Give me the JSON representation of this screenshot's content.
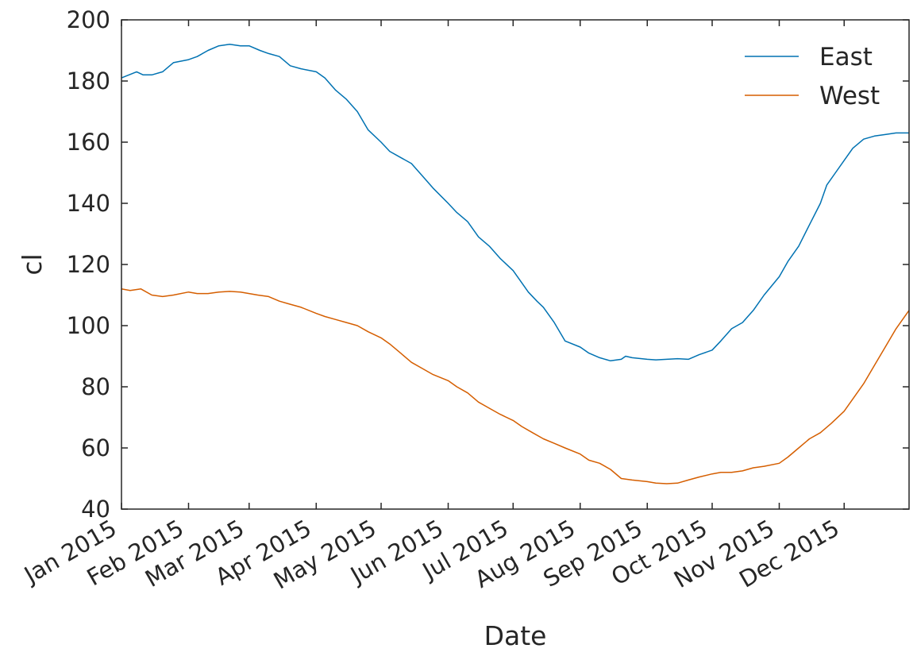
{
  "chart_data": {
    "type": "line",
    "xlabel": "Date",
    "ylabel": "cl",
    "xlim": [
      "2015-01-01",
      "2015-12-31"
    ],
    "ylim": [
      40,
      200
    ],
    "x_ticks": [
      "2015-01-01",
      "2015-02-01",
      "2015-03-01",
      "2015-04-01",
      "2015-05-01",
      "2015-06-01",
      "2015-07-01",
      "2015-08-01",
      "2015-09-01",
      "2015-10-01",
      "2015-11-01",
      "2015-12-01"
    ],
    "x_tick_labels": [
      "Jan 2015",
      "Feb 2015",
      "Mar 2015",
      "Apr 2015",
      "May 2015",
      "Jun 2015",
      "Jul 2015",
      "Aug 2015",
      "Sep 2015",
      "Oct 2015",
      "Nov 2015",
      "Dec 2015"
    ],
    "y_ticks": [
      40,
      60,
      80,
      100,
      120,
      140,
      160,
      180,
      200
    ],
    "y_tick_labels": [
      "40",
      "60",
      "80",
      "100",
      "120",
      "140",
      "160",
      "180",
      "200"
    ],
    "grid": false,
    "legend": "top-right",
    "series": [
      {
        "name": "East",
        "color": "#0072b2",
        "x": [
          "2015-01-01",
          "2015-01-08",
          "2015-01-11",
          "2015-01-15",
          "2015-01-20",
          "2015-01-25",
          "2015-02-01",
          "2015-02-05",
          "2015-02-10",
          "2015-02-15",
          "2015-02-20",
          "2015-02-25",
          "2015-03-01",
          "2015-03-06",
          "2015-03-10",
          "2015-03-15",
          "2015-03-20",
          "2015-03-25",
          "2015-04-01",
          "2015-04-05",
          "2015-04-10",
          "2015-04-15",
          "2015-04-20",
          "2015-04-25",
          "2015-05-01",
          "2015-05-05",
          "2015-05-10",
          "2015-05-15",
          "2015-05-20",
          "2015-05-25",
          "2015-06-01",
          "2015-06-05",
          "2015-06-10",
          "2015-06-15",
          "2015-06-20",
          "2015-06-25",
          "2015-07-01",
          "2015-07-05",
          "2015-07-08",
          "2015-07-12",
          "2015-07-15",
          "2015-07-20",
          "2015-07-25",
          "2015-08-01",
          "2015-08-05",
          "2015-08-10",
          "2015-08-15",
          "2015-08-20",
          "2015-08-22",
          "2015-08-25",
          "2015-09-01",
          "2015-09-05",
          "2015-09-10",
          "2015-09-15",
          "2015-09-20",
          "2015-09-25",
          "2015-10-01",
          "2015-10-05",
          "2015-10-10",
          "2015-10-15",
          "2015-10-20",
          "2015-10-25",
          "2015-11-01",
          "2015-11-05",
          "2015-11-10",
          "2015-11-15",
          "2015-11-20",
          "2015-11-23",
          "2015-11-27",
          "2015-12-01",
          "2015-12-05",
          "2015-12-10",
          "2015-12-15",
          "2015-12-20",
          "2015-12-25",
          "2015-12-31"
        ],
        "y": [
          181,
          183,
          182,
          182,
          183,
          186,
          187,
          188,
          190,
          191.5,
          192,
          191.5,
          191.5,
          190,
          189,
          188,
          185,
          184,
          183,
          181,
          177,
          174,
          170,
          164,
          160,
          157,
          155,
          153,
          149,
          145,
          140,
          137,
          134,
          129,
          126,
          122,
          118,
          114,
          111,
          108,
          106,
          101,
          95,
          93,
          91,
          89.5,
          88.5,
          89,
          90,
          89.5,
          89,
          88.8,
          89,
          89.2,
          89,
          90.5,
          92,
          95,
          99,
          101,
          105,
          110,
          116,
          121,
          126,
          133,
          140,
          146,
          150,
          154,
          158,
          161,
          162,
          162.5,
          163,
          163
        ]
      },
      {
        "name": "West",
        "color": "#d55e00",
        "x": [
          "2015-01-01",
          "2015-01-05",
          "2015-01-10",
          "2015-01-15",
          "2015-01-20",
          "2015-01-25",
          "2015-02-01",
          "2015-02-05",
          "2015-02-10",
          "2015-02-15",
          "2015-02-20",
          "2015-02-25",
          "2015-03-01",
          "2015-03-05",
          "2015-03-10",
          "2015-03-15",
          "2015-03-20",
          "2015-03-25",
          "2015-04-01",
          "2015-04-05",
          "2015-04-10",
          "2015-04-15",
          "2015-04-20",
          "2015-04-25",
          "2015-05-01",
          "2015-05-05",
          "2015-05-10",
          "2015-05-15",
          "2015-05-20",
          "2015-05-25",
          "2015-06-01",
          "2015-06-05",
          "2015-06-10",
          "2015-06-15",
          "2015-06-20",
          "2015-06-25",
          "2015-07-01",
          "2015-07-05",
          "2015-07-10",
          "2015-07-15",
          "2015-07-20",
          "2015-07-25",
          "2015-08-01",
          "2015-08-05",
          "2015-08-10",
          "2015-08-15",
          "2015-08-20",
          "2015-08-25",
          "2015-09-01",
          "2015-09-05",
          "2015-09-10",
          "2015-09-15",
          "2015-09-20",
          "2015-09-25",
          "2015-10-01",
          "2015-10-05",
          "2015-10-10",
          "2015-10-15",
          "2015-10-20",
          "2015-10-25",
          "2015-11-01",
          "2015-11-05",
          "2015-11-10",
          "2015-11-15",
          "2015-11-20",
          "2015-11-25",
          "2015-12-01",
          "2015-12-05",
          "2015-12-10",
          "2015-12-15",
          "2015-12-20",
          "2015-12-25",
          "2015-12-31"
        ],
        "y": [
          112,
          111.5,
          112,
          110,
          109.5,
          110,
          111,
          110.5,
          110.5,
          111,
          111.2,
          111,
          110.5,
          110,
          109.5,
          108,
          107,
          106,
          104,
          103,
          102,
          101,
          100,
          98,
          96,
          94,
          91,
          88,
          86,
          84,
          82,
          80,
          78,
          75,
          73,
          71,
          69,
          67,
          65,
          63,
          61.5,
          60,
          58,
          56,
          55,
          53,
          50,
          49.5,
          49,
          48.5,
          48.3,
          48.5,
          49.5,
          50.5,
          51.5,
          52,
          52,
          52.5,
          53.5,
          54,
          55,
          57,
          60,
          63,
          65,
          68,
          72,
          76,
          81,
          87,
          93,
          99,
          105
        ]
      }
    ]
  },
  "legend": {
    "east_label": "East",
    "west_label": "West"
  }
}
